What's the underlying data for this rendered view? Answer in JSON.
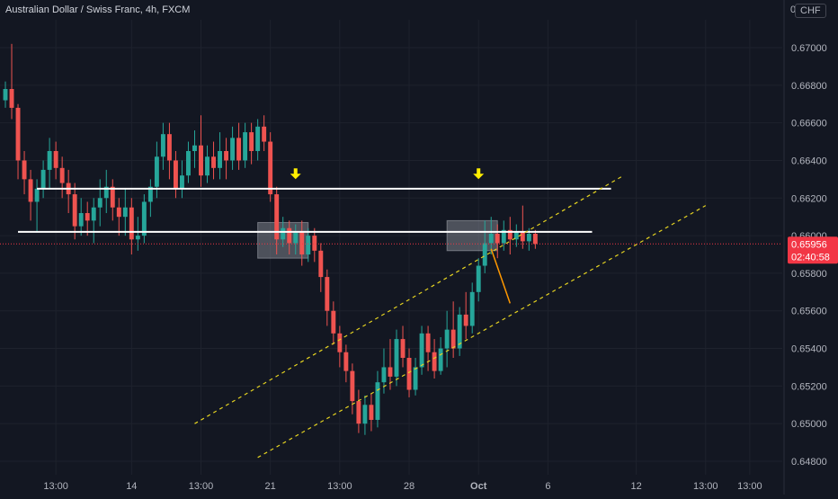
{
  "header": {
    "title": "Australian Dollar / Swiss Franc, 4h, FXCM",
    "currency": "CHF",
    "axis_top_fragment": "0"
  },
  "colors": {
    "background": "#131722",
    "grid": "#1e222d",
    "up": "#26a69a",
    "down": "#ef5350",
    "level_line": "#ffffff",
    "channel": "#e5d321",
    "arrow_marker": "#ffee00",
    "projection": "#ff9800",
    "price_badge": "#f23645",
    "zone": "#9598a1"
  },
  "chart_data": {
    "type": "candlestick",
    "title": "Australian Dollar / Swiss Franc, 4h, FXCM",
    "ylim": [
      0.6474,
      0.6711
    ],
    "y_ticks": [
      "0.67000",
      "0.66800",
      "0.66600",
      "0.66400",
      "0.66200",
      "0.66000",
      "0.65800",
      "0.65600",
      "0.65400",
      "0.65200",
      "0.65000",
      "0.64800"
    ],
    "y_tick_values": [
      0.67,
      0.668,
      0.666,
      0.664,
      0.662,
      0.66,
      0.658,
      0.656,
      0.654,
      0.652,
      0.65,
      0.648
    ],
    "x_ticks": [
      {
        "label": "13:00",
        "bar": 8
      },
      {
        "label": "14",
        "bar": 20
      },
      {
        "label": "13:00",
        "bar": 31
      },
      {
        "label": "21",
        "bar": 42
      },
      {
        "label": "13:00",
        "bar": 53
      },
      {
        "label": "28",
        "bar": 64
      },
      {
        "label": "Oct",
        "bar": 75,
        "bold": true
      },
      {
        "label": "6",
        "bar": 86
      },
      {
        "label": "12",
        "bar": 100
      },
      {
        "label": "13:00",
        "bar": 111
      },
      {
        "label": "13:00",
        "bar": 118
      }
    ],
    "bar_count_span": 124,
    "current_price": "0.65956",
    "current_price_value": 0.65956,
    "countdown": "02:40:58",
    "candles": [
      [
        0.6672,
        0.6678,
        0.6668,
        0.6682
      ],
      [
        0.6678,
        0.6668,
        0.6662,
        0.6702
      ],
      [
        0.6668,
        0.664,
        0.663,
        0.667
      ],
      [
        0.664,
        0.663,
        0.6622,
        0.6645
      ],
      [
        0.663,
        0.6618,
        0.6608,
        0.6635
      ],
      [
        0.6618,
        0.6625,
        0.6602,
        0.663
      ],
      [
        0.6625,
        0.6635,
        0.662,
        0.664
      ],
      [
        0.6635,
        0.6645,
        0.6625,
        0.6652
      ],
      [
        0.6645,
        0.6636,
        0.663,
        0.665
      ],
      [
        0.6636,
        0.6628,
        0.662,
        0.6642
      ],
      [
        0.6628,
        0.6622,
        0.6612,
        0.6635
      ],
      [
        0.6622,
        0.6605,
        0.6598,
        0.6628
      ],
      [
        0.6605,
        0.6612,
        0.66,
        0.662
      ],
      [
        0.6612,
        0.6608,
        0.66,
        0.6618
      ],
      [
        0.6608,
        0.6615,
        0.6596,
        0.662
      ],
      [
        0.6615,
        0.662,
        0.6605,
        0.663
      ],
      [
        0.662,
        0.6626,
        0.6612,
        0.6635
      ],
      [
        0.6626,
        0.6615,
        0.6608,
        0.663
      ],
      [
        0.6615,
        0.661,
        0.66,
        0.662
      ],
      [
        0.661,
        0.6615,
        0.66,
        0.6625
      ],
      [
        0.6615,
        0.6598,
        0.659,
        0.662
      ],
      [
        0.6598,
        0.66,
        0.6592,
        0.661
      ],
      [
        0.66,
        0.6618,
        0.6596,
        0.6622
      ],
      [
        0.6618,
        0.6626,
        0.661,
        0.663
      ],
      [
        0.6626,
        0.6642,
        0.662,
        0.665
      ],
      [
        0.6642,
        0.6654,
        0.6635,
        0.666
      ],
      [
        0.6654,
        0.664,
        0.663,
        0.666
      ],
      [
        0.664,
        0.6625,
        0.662,
        0.6645
      ],
      [
        0.6625,
        0.6632,
        0.662,
        0.664
      ],
      [
        0.6632,
        0.6645,
        0.6628,
        0.665
      ],
      [
        0.6645,
        0.6648,
        0.6636,
        0.6656
      ],
      [
        0.6648,
        0.6632,
        0.6626,
        0.6664
      ],
      [
        0.6632,
        0.6642,
        0.6628,
        0.6648
      ],
      [
        0.6642,
        0.6636,
        0.663,
        0.665
      ],
      [
        0.6636,
        0.6645,
        0.663,
        0.6655
      ],
      [
        0.6645,
        0.664,
        0.663,
        0.6652
      ],
      [
        0.664,
        0.6652,
        0.6635,
        0.6658
      ],
      [
        0.6652,
        0.664,
        0.6635,
        0.666
      ],
      [
        0.664,
        0.6655,
        0.6636,
        0.666
      ],
      [
        0.6655,
        0.6645,
        0.6638,
        0.666
      ],
      [
        0.6645,
        0.6658,
        0.664,
        0.6662
      ],
      [
        0.6658,
        0.665,
        0.6645,
        0.6664
      ],
      [
        0.665,
        0.6622,
        0.6618,
        0.6655
      ],
      [
        0.6622,
        0.6598,
        0.659,
        0.6626
      ],
      [
        0.6598,
        0.6604,
        0.6594,
        0.661
      ],
      [
        0.6604,
        0.6596,
        0.659,
        0.6608
      ],
      [
        0.6596,
        0.6602,
        0.659,
        0.6606
      ],
      [
        0.6602,
        0.659,
        0.6584,
        0.6608
      ],
      [
        0.659,
        0.66,
        0.6586,
        0.6604
      ],
      [
        0.66,
        0.6592,
        0.6586,
        0.6604
      ],
      [
        0.6592,
        0.6578,
        0.657,
        0.6596
      ],
      [
        0.6578,
        0.656,
        0.6552,
        0.6582
      ],
      [
        0.656,
        0.6548,
        0.6542,
        0.6565
      ],
      [
        0.6548,
        0.6538,
        0.653,
        0.6552
      ],
      [
        0.6538,
        0.6528,
        0.6522,
        0.6542
      ],
      [
        0.6528,
        0.6512,
        0.6505,
        0.6532
      ],
      [
        0.6512,
        0.65,
        0.6495,
        0.6518
      ],
      [
        0.65,
        0.651,
        0.6494,
        0.6515
      ],
      [
        0.651,
        0.6502,
        0.6496,
        0.6516
      ],
      [
        0.6502,
        0.6522,
        0.6498,
        0.6528
      ],
      [
        0.6522,
        0.653,
        0.6516,
        0.654
      ],
      [
        0.653,
        0.6525,
        0.6518,
        0.6545
      ],
      [
        0.6525,
        0.6545,
        0.652,
        0.655
      ],
      [
        0.6545,
        0.6535,
        0.653,
        0.6552
      ],
      [
        0.6535,
        0.6518,
        0.6514,
        0.654
      ],
      [
        0.6518,
        0.653,
        0.6515,
        0.6535
      ],
      [
        0.653,
        0.6548,
        0.6526,
        0.6552
      ],
      [
        0.6548,
        0.6538,
        0.6528,
        0.6552
      ],
      [
        0.6538,
        0.6528,
        0.6524,
        0.6545
      ],
      [
        0.6528,
        0.654,
        0.6526,
        0.6546
      ],
      [
        0.654,
        0.655,
        0.653,
        0.656
      ],
      [
        0.655,
        0.654,
        0.6535,
        0.6565
      ],
      [
        0.654,
        0.6558,
        0.6536,
        0.6562
      ],
      [
        0.6558,
        0.6552,
        0.6545,
        0.657
      ],
      [
        0.6552,
        0.657,
        0.6548,
        0.6575
      ],
      [
        0.657,
        0.6584,
        0.6565,
        0.6588
      ],
      [
        0.6584,
        0.6596,
        0.658,
        0.6608
      ],
      [
        0.6596,
        0.6601,
        0.659,
        0.661
      ],
      [
        0.6601,
        0.6596,
        0.6588,
        0.6606
      ],
      [
        0.6596,
        0.6603,
        0.6592,
        0.6608
      ],
      [
        0.6603,
        0.6598,
        0.659,
        0.661
      ],
      [
        0.6598,
        0.6602,
        0.6594,
        0.6606
      ],
      [
        0.6602,
        0.6597,
        0.6593,
        0.6616
      ],
      [
        0.6597,
        0.6601,
        0.6592,
        0.6604
      ],
      [
        0.6601,
        0.65956,
        0.6593,
        0.6603
      ]
    ],
    "levels": [
      {
        "name": "upper-resistance",
        "price": 0.6625,
        "from_bar": 5,
        "to_bar": 96
      },
      {
        "name": "lower-resistance",
        "price": 0.6602,
        "from_bar": 2,
        "to_bar": 93
      }
    ],
    "channel": [
      {
        "name": "channel-upper",
        "from": [
          30,
          0.65
        ],
        "to": [
          98,
          0.6632
        ]
      },
      {
        "name": "channel-lower",
        "from": [
          40,
          0.6482
        ],
        "to": [
          111,
          0.6616
        ]
      }
    ],
    "zones": [
      {
        "name": "breakdown-zone",
        "from_bar": 40,
        "to_bar": 48,
        "price_top": 0.6607,
        "price_bottom": 0.6588
      },
      {
        "name": "retest-zone",
        "from_bar": 70,
        "to_bar": 78,
        "price_top": 0.6608,
        "price_bottom": 0.6592
      }
    ],
    "markers": [
      {
        "name": "down-arrow-left",
        "bar": 46,
        "price": 0.6631
      },
      {
        "name": "down-arrow-right",
        "bar": 75,
        "price": 0.6631
      }
    ],
    "projection": {
      "from": [
        77,
        0.6593
      ],
      "to": [
        80,
        0.6564
      ]
    }
  }
}
